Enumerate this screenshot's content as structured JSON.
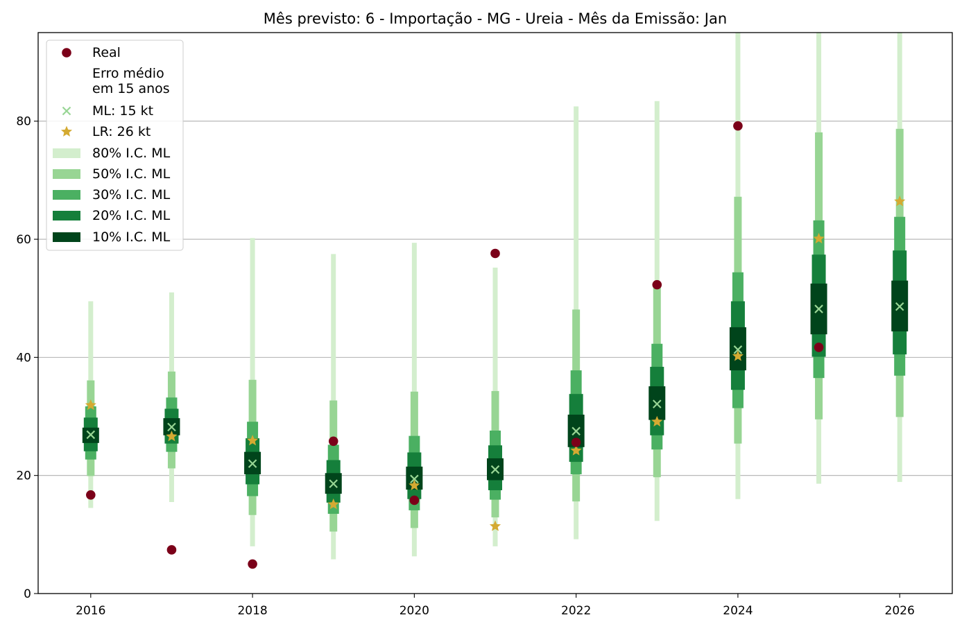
{
  "chart_data": {
    "type": "interval-forecast",
    "title": "Mês previsto: 6 - Importação - MG - Ureia - Mês da Emissão: Jan",
    "xlabel": "",
    "ylabel": "",
    "xlim": [
      2015.35,
      2026.65
    ],
    "ylim": [
      0,
      95
    ],
    "x_ticks": [
      "2016",
      "2018",
      "2020",
      "2022",
      "2024",
      "2026"
    ],
    "y_ticks": [
      "0",
      "20",
      "40",
      "60",
      "80"
    ],
    "grid": "horizontal",
    "legend_position": "top-left",
    "legend": {
      "real": "Real",
      "avg_error": "Erro médio\nem 15 anos",
      "ml": "ML: 15 kt",
      "lr": "LR: 26 kt",
      "ci80": "80% I.C. ML",
      "ci50": "50% I.C. ML",
      "ci30": "30% I.C. ML",
      "ci20": "20% I.C. ML",
      "ci10": "10% I.C. ML"
    },
    "colors": {
      "real": "#7b0019",
      "ml": "#98d594",
      "lr": "#d4aa32",
      "ci80": "#d3eecd",
      "ci50": "#98d594",
      "ci30": "#4bb062",
      "ci20": "#157f3b",
      "ci10": "#00441b"
    },
    "years": [
      2016,
      2017,
      2018,
      2019,
      2020,
      2021,
      2022,
      2023,
      2024,
      2025,
      2026
    ],
    "real": [
      16.7,
      7.4,
      5.0,
      25.8,
      15.8,
      57.6,
      25.6,
      52.3,
      79.2,
      41.7,
      null
    ],
    "ml": [
      26.9,
      28.2,
      22.0,
      18.6,
      19.4,
      21.0,
      27.5,
      32.1,
      41.3,
      48.2,
      48.6
    ],
    "lr": [
      31.9,
      26.6,
      25.9,
      15.1,
      18.3,
      11.4,
      24.2,
      29.1,
      40.2,
      60.1,
      66.4
    ],
    "intervals": {
      "ci80": [
        [
          14.5,
          49.5
        ],
        [
          15.5,
          51.0
        ],
        [
          8.0,
          60.2
        ],
        [
          5.8,
          57.5
        ],
        [
          6.3,
          59.4
        ],
        [
          8.0,
          55.2
        ],
        [
          9.2,
          82.5
        ],
        [
          12.3,
          83.4
        ],
        [
          16.0,
          95.0
        ],
        [
          18.6,
          95.0
        ],
        [
          18.9,
          95.0
        ]
      ],
      "ci50": [
        [
          19.9,
          36.1
        ],
        [
          21.2,
          37.6
        ],
        [
          13.3,
          36.2
        ],
        [
          10.5,
          32.7
        ],
        [
          11.1,
          34.2
        ],
        [
          12.9,
          34.3
        ],
        [
          15.6,
          48.1
        ],
        [
          19.7,
          52.3
        ],
        [
          25.4,
          67.2
        ],
        [
          29.5,
          78.1
        ],
        [
          29.9,
          78.7
        ]
      ],
      "ci30": [
        [
          22.7,
          31.7
        ],
        [
          24.0,
          33.2
        ],
        [
          16.5,
          29.1
        ],
        [
          13.5,
          25.2
        ],
        [
          14.1,
          26.7
        ],
        [
          15.9,
          27.6
        ],
        [
          20.2,
          37.8
        ],
        [
          24.4,
          42.3
        ],
        [
          31.4,
          54.4
        ],
        [
          36.5,
          63.2
        ],
        [
          36.9,
          63.8
        ]
      ],
      "ci20": [
        [
          24.1,
          29.8
        ],
        [
          25.4,
          31.3
        ],
        [
          18.5,
          26.3
        ],
        [
          15.4,
          22.6
        ],
        [
          16.0,
          23.9
        ],
        [
          17.5,
          25.1
        ],
        [
          22.3,
          33.8
        ],
        [
          26.8,
          38.4
        ],
        [
          34.5,
          49.5
        ],
        [
          40.1,
          57.4
        ],
        [
          40.5,
          58.1
        ]
      ],
      "ci10": [
        [
          25.5,
          28.1
        ],
        [
          26.8,
          29.7
        ],
        [
          20.2,
          24.0
        ],
        [
          16.9,
          20.4
        ],
        [
          17.6,
          21.5
        ],
        [
          19.2,
          22.9
        ],
        [
          24.8,
          30.3
        ],
        [
          29.4,
          35.1
        ],
        [
          37.8,
          45.1
        ],
        [
          43.9,
          52.5
        ],
        [
          44.4,
          53.0
        ]
      ]
    }
  }
}
